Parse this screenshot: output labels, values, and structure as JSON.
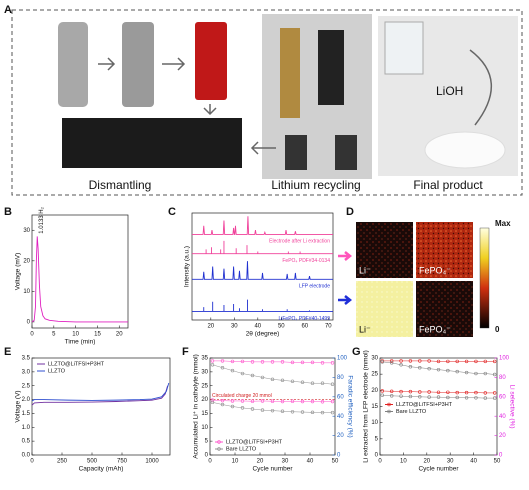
{
  "panel_labels": [
    "A",
    "B",
    "C",
    "D",
    "E",
    "F",
    "G"
  ],
  "photo_captions": [
    "Dismantling",
    "Lithium recycling",
    "Final product",
    "LiOH"
  ],
  "maps": {
    "labels": [
      "Li⁻",
      "FePO₄⁻",
      "Li⁻",
      "FePO₄⁻"
    ],
    "colorbar": [
      "Max",
      "0"
    ]
  },
  "chart_data": [
    {
      "type": "line",
      "xlabel": "Time (min)",
      "ylabel": "Voltage (mV)",
      "annotation": "1.0133 H₂",
      "xlim": [
        0,
        22
      ],
      "ylim": [
        -2,
        35
      ],
      "xticks": [
        0,
        5,
        10,
        15,
        20
      ],
      "yticks": [
        0,
        10,
        20,
        30
      ],
      "series": [
        {
          "color": "#e020c0",
          "x": [
            0,
            0.5,
            0.8,
            1.0,
            1.2,
            1.4,
            1.7,
            2.0,
            2.5,
            3,
            4,
            6,
            10,
            15,
            20,
            22
          ],
          "values": [
            0,
            0.5,
            5,
            20,
            28,
            24,
            12,
            5,
            2,
            1,
            0.5,
            0.2,
            0,
            0,
            0,
            0
          ]
        }
      ]
    },
    {
      "type": "line",
      "xlabel": "2θ (degree)",
      "ylabel": "Intensity (a.u.)",
      "series_labels": true,
      "xlim": [
        12,
        72
      ],
      "ylim": [
        0,
        100
      ],
      "xticks": [
        20,
        30,
        40,
        50,
        60,
        70
      ],
      "series": [
        {
          "name": "Electrode after Li extraction",
          "color": "#f0409a",
          "x": [
            12,
            16.7,
            17,
            17.3,
            20.2,
            20.5,
            20.8,
            25.3,
            25.6,
            25.9,
            29.4,
            29.7,
            30,
            30.2,
            30.5,
            30.8,
            35.5,
            35.8,
            36.1,
            38.7,
            39,
            39.3,
            42.7,
            43,
            43.3,
            51.7,
            52,
            52.3,
            55.7,
            56,
            56.3,
            72
          ],
          "values": [
            80,
            80,
            88,
            80,
            80,
            84,
            80,
            80,
            93,
            80,
            80,
            86,
            80,
            80,
            88,
            80,
            80,
            97,
            80,
            80,
            84,
            80,
            80,
            82,
            80,
            80,
            84,
            80,
            80,
            83,
            80,
            80
          ]
        },
        {
          "name": "FePO₄  PDF#34-0134",
          "color": "#f0409a",
          "x": [
            12,
            18,
            18,
            18,
            20.3,
            20.3,
            20.3,
            24.2,
            24.2,
            24.2,
            25.6,
            25.6,
            25.6,
            30.8,
            30.8,
            30.8,
            35.4,
            35.4,
            35.4,
            40,
            40,
            40,
            53,
            53,
            53,
            58,
            58,
            58,
            72
          ],
          "values": [
            62,
            62,
            66,
            62,
            62,
            68,
            62,
            62,
            66,
            62,
            62,
            74,
            62,
            62,
            67,
            62,
            62,
            70,
            62,
            62,
            64,
            62,
            62,
            64,
            62,
            62,
            64,
            62,
            62
          ]
        },
        {
          "name": "LFP electrode",
          "color": "#2030d0",
          "x": [
            12,
            16.7,
            17,
            17.3,
            20.5,
            20.8,
            21.1,
            25.3,
            25.6,
            25.9,
            29.4,
            29.7,
            30,
            31.9,
            32.2,
            32.5,
            35.3,
            35.6,
            35.9,
            41.7,
            42,
            42.3,
            52.2,
            52.5,
            52.8,
            55.7,
            56,
            56.3,
            61.7,
            62,
            62.3,
            72
          ],
          "values": [
            38,
            38,
            45,
            38,
            38,
            50,
            38,
            38,
            48,
            38,
            38,
            50,
            38,
            38,
            46,
            38,
            38,
            55,
            38,
            38,
            44,
            38,
            38,
            43,
            38,
            38,
            44,
            38,
            38,
            41,
            38,
            38
          ]
        },
        {
          "name": "LiFePO₄  PDF#40-1499",
          "color": "#2030d0",
          "x": [
            12,
            17,
            17,
            17,
            20.8,
            20.8,
            20.8,
            25.6,
            25.6,
            25.6,
            29.7,
            29.7,
            29.7,
            32.2,
            32.2,
            32.2,
            35.6,
            35.6,
            35.6,
            42,
            42,
            42,
            52.5,
            52.5,
            52.5,
            62,
            62,
            62,
            72
          ],
          "values": [
            8,
            8,
            12,
            8,
            8,
            17,
            8,
            8,
            14,
            8,
            8,
            15,
            8,
            8,
            11,
            8,
            8,
            19,
            8,
            8,
            10,
            8,
            8,
            10,
            8,
            8,
            9,
            8,
            8
          ]
        }
      ]
    },
    {
      "type": "line",
      "xlabel": "Capacity (mAh)",
      "ylabel": "Voltage (V)",
      "legend": "upper left",
      "xlim": [
        0,
        1150
      ],
      "ylim": [
        0,
        3.5
      ],
      "xticks": [
        0,
        250,
        500,
        750,
        1000
      ],
      "yticks": [
        {
          "value": 0,
          "label": "0.0"
        },
        0.5,
        {
          "value": 1,
          "label": "1.0"
        },
        1.5,
        {
          "value": 2,
          "label": "2.0"
        },
        2.5,
        {
          "value": 3,
          "label": "3.0"
        },
        3.5
      ],
      "series": [
        {
          "name": "LLZTO@LiTFSI+P3HT",
          "color": "#7030a0",
          "x": [
            0,
            20,
            100,
            300,
            500,
            700,
            900,
            1000,
            1080,
            1110,
            1130
          ],
          "values": [
            1.8,
            1.88,
            1.9,
            1.9,
            1.91,
            1.93,
            1.96,
            1.98,
            2.05,
            2.2,
            2.5
          ]
        },
        {
          "name": "LLZTO",
          "color": "#3050d0",
          "x": [
            0,
            20,
            100,
            300,
            500,
            700,
            900,
            1000,
            1080,
            1120,
            1140
          ],
          "values": [
            1.95,
            2.0,
            2.0,
            1.98,
            1.97,
            1.98,
            2.0,
            2.02,
            2.1,
            2.3,
            2.6
          ]
        }
      ]
    },
    {
      "type": "line",
      "xlabel": "Cycle number",
      "ylabel": "Accumulated Li⁺ in catholyte (mmol)",
      "y2label": "Faradic efficiency (%)",
      "legend": "lower left",
      "markers": true,
      "y2color": "#2060c0",
      "hlines": [
        {
          "value": 20,
          "label": "Circulated charge 20 mmol"
        }
      ],
      "xlim": [
        0,
        50
      ],
      "ylim": [
        0,
        35
      ],
      "y2lim": [
        0,
        100
      ],
      "xticks": [
        0,
        10,
        20,
        30,
        40,
        50
      ],
      "yticks": [
        0,
        5,
        10,
        15,
        20,
        25,
        30,
        35
      ],
      "y2ticks": [
        0,
        20,
        40,
        60,
        80,
        100
      ],
      "series": [
        {
          "name": "LLZTO@LiTFSI+P3HT",
          "color": "#ff55cc",
          "x": [
            1,
            5,
            9,
            13,
            17,
            21,
            25,
            29,
            33,
            37,
            41,
            45,
            49
          ],
          "values": [
            19.8,
            19.6,
            19.5,
            19.5,
            19.4,
            19.5,
            19.4,
            19.3,
            19.4,
            19.3,
            19.3,
            19.2,
            19.3
          ]
        },
        {
          "name": "Bare LLZTO",
          "color": "#909090",
          "x": [
            1,
            5,
            9,
            13,
            17,
            21,
            25,
            29,
            33,
            37,
            41,
            45,
            49
          ],
          "values": [
            19,
            18.2,
            17.5,
            17,
            16.6,
            16.2,
            16,
            15.8,
            15.6,
            15.5,
            15.4,
            15.3,
            15.3
          ]
        },
        {
          "color": "#ff55cc",
          "axis": "y2",
          "x": [
            1,
            5,
            9,
            13,
            17,
            21,
            25,
            29,
            33,
            37,
            41,
            45,
            49
          ],
          "values": [
            97,
            97,
            96.5,
            96.5,
            96,
            96,
            96,
            96,
            95.5,
            95.5,
            95.5,
            95,
            95
          ]
        },
        {
          "color": "#909090",
          "axis": "y2",
          "x": [
            1,
            5,
            9,
            13,
            17,
            21,
            25,
            29,
            33,
            37,
            41,
            45,
            49
          ],
          "values": [
            93,
            90,
            87,
            84,
            82,
            80,
            78,
            77,
            76,
            75,
            74,
            74,
            73
          ]
        }
      ]
    },
    {
      "type": "line",
      "xlabel": "Cycle number",
      "ylabel": "Li extracted from LFP electrode (mmol)",
      "y2label": "Li selective (%)",
      "legend": "center left",
      "markers": true,
      "y2color": "#e020e0",
      "xlim": [
        0,
        50
      ],
      "ylim": [
        0,
        30
      ],
      "y2lim": [
        0,
        100
      ],
      "xticks": [
        0,
        10,
        20,
        30,
        40,
        50
      ],
      "yticks": [
        0,
        5,
        10,
        15,
        20,
        25,
        30
      ],
      "y2ticks": [
        0,
        20,
        40,
        60,
        80,
        100
      ],
      "series": [
        {
          "name": "LLZTO@LiTFSI+P3HT",
          "color": "#e02020",
          "x": [
            1,
            5,
            9,
            13,
            17,
            21,
            25,
            29,
            33,
            37,
            41,
            45,
            49
          ],
          "values": [
            19.8,
            19.7,
            19.6,
            19.6,
            19.5,
            19.5,
            19.4,
            19.4,
            19.3,
            19.3,
            19.3,
            19.2,
            19.2
          ]
        },
        {
          "name": "Bare LLZTO",
          "color": "#808080",
          "x": [
            1,
            5,
            9,
            13,
            17,
            21,
            25,
            29,
            33,
            37,
            41,
            45,
            49
          ],
          "values": [
            18.5,
            18.3,
            18.2,
            18.1,
            18,
            17.9,
            17.9,
            17.8,
            17.8,
            17.7,
            17.7,
            17.6,
            17.6
          ]
        },
        {
          "color": "#e02020",
          "axis": "y2",
          "x": [
            1,
            5,
            9,
            13,
            17,
            21,
            25,
            29,
            33,
            37,
            41,
            45,
            49
          ],
          "values": [
            97,
            97,
            97,
            97,
            97,
            97,
            96.5,
            96.5,
            96.5,
            96.5,
            96.5,
            96.5,
            96.5
          ]
        },
        {
          "color": "#808080",
          "axis": "y2",
          "x": [
            1,
            5,
            9,
            13,
            17,
            21,
            25,
            29,
            33,
            37,
            41,
            45,
            49
          ],
          "values": [
            96,
            95,
            93,
            91,
            90,
            89,
            88,
            87,
            86,
            85,
            84,
            84,
            83
          ]
        }
      ]
    }
  ]
}
